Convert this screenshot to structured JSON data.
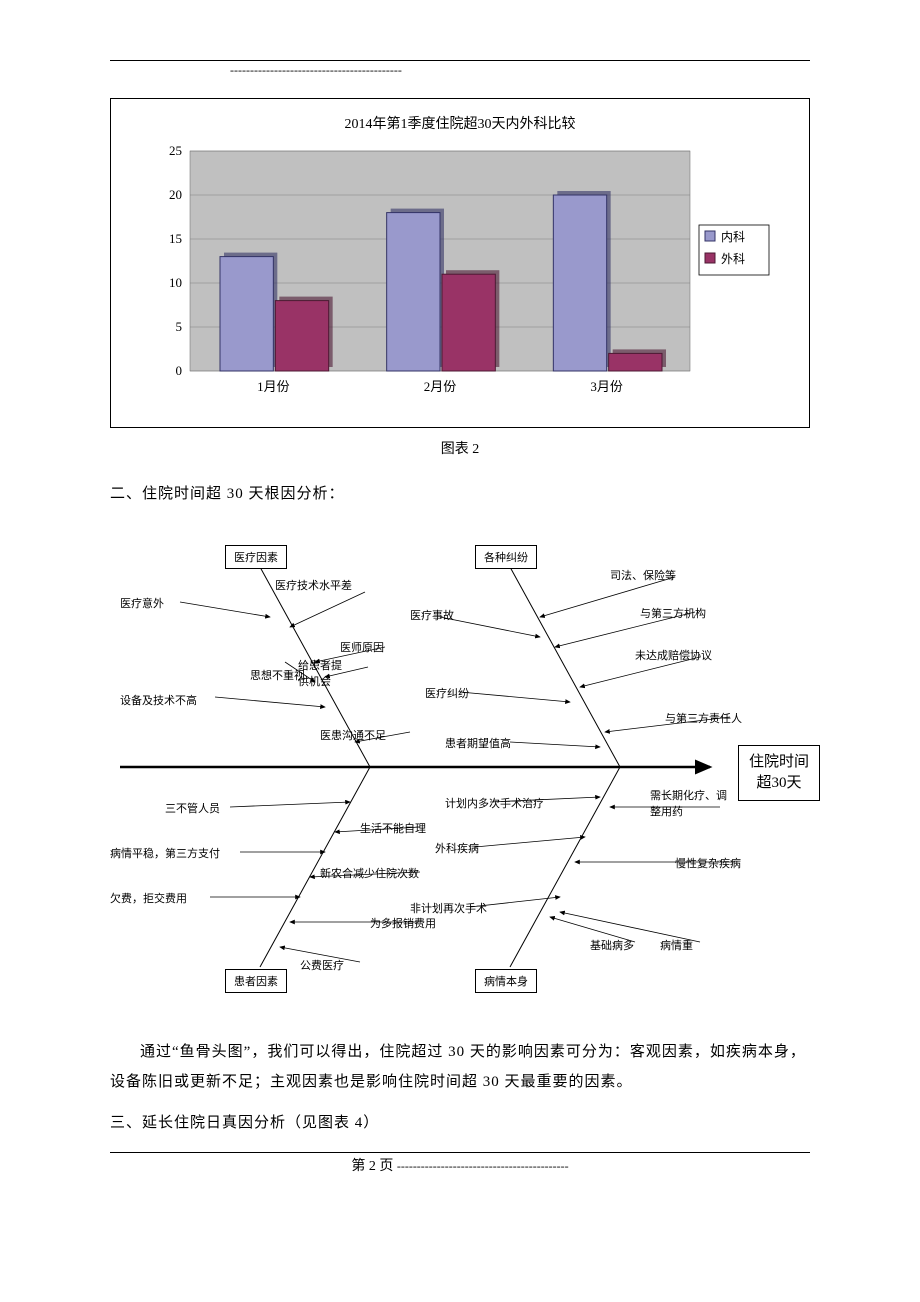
{
  "top_dashes": "-------------------------------------------",
  "chart": {
    "type": "bar",
    "title": "2014年第1季度住院超30天内外科比较",
    "categories": [
      "1月份",
      "2月份",
      "3月份"
    ],
    "series": [
      {
        "name": "内科",
        "values": [
          13,
          18,
          20
        ],
        "color": "#9999cc",
        "edge": "#333366"
      },
      {
        "name": "外科",
        "values": [
          8,
          11,
          2
        ],
        "color": "#993366",
        "edge": "#4d1933"
      }
    ],
    "ylim": [
      0,
      25
    ],
    "ytick_step": 5,
    "plot_bg": "#c0c0c0",
    "grid_color": "#808080",
    "bar_width": 0.32,
    "title_fontsize": 14,
    "axis_fontsize": 13,
    "legend_fontsize": 12,
    "legend_border": "#000000",
    "legend_bg": "#ffffff"
  },
  "caption2": "图表 2",
  "section2_title": "二、住院时间超 30 天根因分析：",
  "fishbone": {
    "result": "住院时间\n超30天",
    "top_branches": [
      {
        "box": "医疗因素",
        "items": {
          "a1": "医疗意外",
          "a2": "医疗技术水平差",
          "a3": "医师原因",
          "a4": "思想不重视",
          "a5": "给患者提供机会",
          "a6": "设备及技术不高",
          "a7": "医患沟通不足"
        }
      },
      {
        "box": "各种纠纷",
        "items": {
          "b1": "司法、保险等",
          "b2": "与第三方机构",
          "b3": "医疗事故",
          "b4": "未达成赔偿协议",
          "b5": "医疗纠纷",
          "b6": "与第三方责任人",
          "b7": "患者期望值高"
        }
      }
    ],
    "bottom_branches": [
      {
        "box": "患者因素",
        "items": {
          "c1": "三不管人员",
          "c2": "生活不能自理",
          "c3": "病情平稳，第三方支付",
          "c4": "新农合减少住院次数",
          "c5": "欠费，拒交费用",
          "c6": "为多报销费用",
          "c7": "公费医疗"
        }
      },
      {
        "box": "病情本身",
        "items": {
          "d1": "计划内多次手术治疗",
          "d2": "需长期化疗、调整用药",
          "d3": "外科疾病",
          "d4": "慢性复杂疾病",
          "d5": "非计划再次手术",
          "d6": "基础病多",
          "d7": "病情重"
        }
      }
    ]
  },
  "body_para": "通过“鱼骨头图”，我们可以得出，住院超过 30 天的影响因素可分为：客观因素，如疾病本身，设备陈旧或更新不足；主观因素也是影响住院时间超 30 天最重要的因素。",
  "section3_title": "三、延长住院日真因分析（见图表 4）",
  "footer": {
    "left_dash": "",
    "page_label": "第 2 页",
    "right_dash": "-------------------------------------------"
  }
}
